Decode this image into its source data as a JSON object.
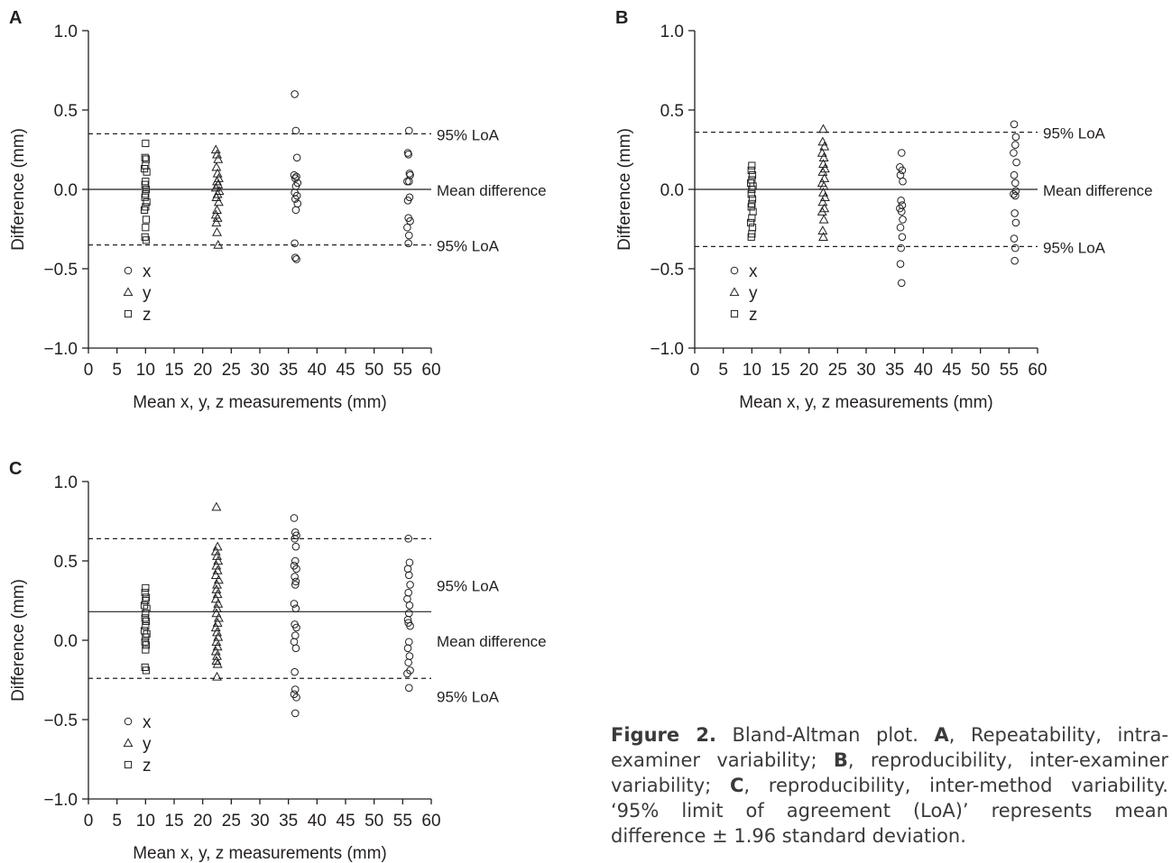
{
  "chart_data": [
    {
      "type": "scatter",
      "panel_label": "A",
      "xlabel": "Mean x, y, z measurements (mm)",
      "ylabel": "Difference (mm)",
      "xlim": [
        0,
        60
      ],
      "ylim": [
        -1.0,
        1.0
      ],
      "xticks": [
        0,
        5,
        10,
        15,
        20,
        25,
        30,
        35,
        40,
        45,
        50,
        55,
        60
      ],
      "yticks": [
        1.0,
        0.5,
        0.0,
        -0.5,
        -1.0
      ],
      "ytick_labels": [
        "1.0",
        "0.5",
        "0.0",
        "−0.5",
        "−1.0"
      ],
      "legend_position": "bottom-left",
      "lines": [
        {
          "label": "95% LoA",
          "y": 0.35,
          "style": "dashed"
        },
        {
          "label": "Mean difference",
          "y": 0.0,
          "style": "solid"
        },
        {
          "label": "95% LoA",
          "y": -0.35,
          "style": "dashed"
        }
      ],
      "series": [
        {
          "name": "x",
          "marker": "circle",
          "points": [
            [
              36.1,
              0.6
            ],
            [
              36.3,
              0.37
            ],
            [
              36.5,
              0.2
            ],
            [
              36.0,
              0.09
            ],
            [
              36.4,
              0.08
            ],
            [
              36.2,
              0.07
            ],
            [
              36.6,
              0.04
            ],
            [
              36.3,
              0.02
            ],
            [
              36.1,
              -0.02
            ],
            [
              36.5,
              -0.04
            ],
            [
              36.2,
              -0.06
            ],
            [
              36.6,
              -0.09
            ],
            [
              36.3,
              -0.13
            ],
            [
              36.1,
              -0.34
            ],
            [
              36.2,
              -0.43
            ],
            [
              36.4,
              -0.44
            ],
            [
              56.1,
              0.37
            ],
            [
              55.9,
              0.23
            ],
            [
              56.0,
              0.22
            ],
            [
              56.2,
              0.1
            ],
            [
              56.3,
              0.09
            ],
            [
              55.8,
              0.05
            ],
            [
              56.1,
              0.05
            ],
            [
              56.2,
              -0.05
            ],
            [
              55.9,
              -0.07
            ],
            [
              56.0,
              -0.18
            ],
            [
              56.3,
              -0.2
            ],
            [
              55.8,
              -0.24
            ],
            [
              56.1,
              -0.29
            ],
            [
              56.0,
              -0.34
            ]
          ]
        },
        {
          "name": "y",
          "marker": "triangle",
          "points": [
            [
              22.3,
              0.25
            ],
            [
              22.5,
              0.22
            ],
            [
              22.7,
              0.19
            ],
            [
              22.4,
              0.14
            ],
            [
              22.6,
              0.1
            ],
            [
              22.8,
              0.07
            ],
            [
              22.5,
              0.05
            ],
            [
              22.7,
              0.03
            ],
            [
              22.3,
              0.01
            ],
            [
              22.9,
              -0.01
            ],
            [
              22.6,
              -0.03
            ],
            [
              22.4,
              -0.05
            ],
            [
              22.8,
              -0.08
            ],
            [
              22.5,
              -0.13
            ],
            [
              22.3,
              -0.16
            ],
            [
              22.6,
              -0.18
            ],
            [
              22.4,
              -0.21
            ],
            [
              22.5,
              -0.27
            ],
            [
              22.7,
              -0.35
            ]
          ]
        },
        {
          "name": "z",
          "marker": "square",
          "points": [
            [
              10.0,
              0.29
            ],
            [
              9.9,
              0.2
            ],
            [
              10.1,
              0.19
            ],
            [
              10.0,
              0.15
            ],
            [
              9.8,
              0.13
            ],
            [
              10.2,
              0.11
            ],
            [
              10.0,
              0.05
            ],
            [
              9.9,
              0.03
            ],
            [
              10.1,
              0.0
            ],
            [
              10.0,
              -0.03
            ],
            [
              9.9,
              -0.05
            ],
            [
              10.2,
              -0.08
            ],
            [
              10.0,
              -0.11
            ],
            [
              9.8,
              -0.13
            ],
            [
              10.1,
              -0.19
            ],
            [
              10.0,
              -0.24
            ],
            [
              9.9,
              -0.3
            ],
            [
              10.1,
              -0.32
            ]
          ]
        }
      ]
    },
    {
      "type": "scatter",
      "panel_label": "B",
      "xlabel": "Mean x, y, z measurements (mm)",
      "ylabel": "Difference (mm)",
      "xlim": [
        0,
        60
      ],
      "ylim": [
        -1.0,
        1.0
      ],
      "xticks": [
        0,
        5,
        10,
        15,
        20,
        25,
        30,
        35,
        40,
        45,
        50,
        55,
        60
      ],
      "yticks": [
        1.0,
        0.5,
        0.0,
        -0.5,
        -1.0
      ],
      "ytick_labels": [
        "1.0",
        "0.5",
        "0.0",
        "−0.5",
        "−1.0"
      ],
      "legend_position": "bottom-left",
      "lines": [
        {
          "label": "95% LoA",
          "y": 0.36,
          "style": "dashed"
        },
        {
          "label": "Mean difference",
          "y": 0.0,
          "style": "solid"
        },
        {
          "label": "95% LoA",
          "y": -0.36,
          "style": "dashed"
        }
      ],
      "series": [
        {
          "name": "x",
          "marker": "circle",
          "points": [
            [
              36.2,
              0.23
            ],
            [
              35.9,
              0.14
            ],
            [
              36.3,
              0.12
            ],
            [
              36.0,
              0.09
            ],
            [
              36.4,
              0.05
            ],
            [
              36.1,
              -0.07
            ],
            [
              36.3,
              -0.1
            ],
            [
              35.9,
              -0.12
            ],
            [
              36.2,
              -0.14
            ],
            [
              36.4,
              -0.19
            ],
            [
              36.0,
              -0.24
            ],
            [
              36.3,
              -0.3
            ],
            [
              36.1,
              -0.37
            ],
            [
              36.0,
              -0.47
            ],
            [
              36.2,
              -0.59
            ],
            [
              55.9,
              0.41
            ],
            [
              56.2,
              0.33
            ],
            [
              56.1,
              0.28
            ],
            [
              55.8,
              0.23
            ],
            [
              56.3,
              0.17
            ],
            [
              55.9,
              0.09
            ],
            [
              56.1,
              0.04
            ],
            [
              56.2,
              -0.01
            ],
            [
              55.8,
              -0.03
            ],
            [
              56.1,
              -0.04
            ],
            [
              56.0,
              -0.15
            ],
            [
              56.2,
              -0.21
            ],
            [
              55.9,
              -0.31
            ],
            [
              56.1,
              -0.37
            ],
            [
              56.0,
              -0.45
            ]
          ]
        },
        {
          "name": "y",
          "marker": "triangle",
          "points": [
            [
              22.5,
              0.38
            ],
            [
              22.4,
              0.3
            ],
            [
              22.7,
              0.27
            ],
            [
              22.3,
              0.23
            ],
            [
              22.6,
              0.2
            ],
            [
              22.5,
              0.16
            ],
            [
              22.8,
              0.13
            ],
            [
              22.4,
              0.11
            ],
            [
              22.7,
              0.07
            ],
            [
              22.3,
              0.04
            ],
            [
              22.6,
              0.02
            ],
            [
              22.5,
              -0.02
            ],
            [
              22.8,
              -0.05
            ],
            [
              22.4,
              -0.08
            ],
            [
              22.7,
              -0.12
            ],
            [
              22.3,
              -0.14
            ],
            [
              22.6,
              -0.19
            ],
            [
              22.4,
              -0.26
            ],
            [
              22.5,
              -0.3
            ]
          ]
        },
        {
          "name": "z",
          "marker": "square",
          "points": [
            [
              10.0,
              0.15
            ],
            [
              9.9,
              0.12
            ],
            [
              10.1,
              0.09
            ],
            [
              10.0,
              0.06
            ],
            [
              9.8,
              0.04
            ],
            [
              10.2,
              0.02
            ],
            [
              10.0,
              0.0
            ],
            [
              9.9,
              -0.03
            ],
            [
              10.1,
              -0.06
            ],
            [
              10.0,
              -0.09
            ],
            [
              9.9,
              -0.11
            ],
            [
              10.2,
              -0.14
            ],
            [
              10.0,
              -0.18
            ],
            [
              9.8,
              -0.21
            ],
            [
              10.1,
              -0.24
            ],
            [
              10.0,
              -0.28
            ],
            [
              9.9,
              -0.3
            ]
          ]
        }
      ]
    },
    {
      "type": "scatter",
      "panel_label": "C",
      "xlabel": "Mean x, y, z measurements (mm)",
      "ylabel": "Difference (mm)",
      "xlim": [
        0,
        60
      ],
      "ylim": [
        -1.0,
        1.0
      ],
      "xticks": [
        0,
        5,
        10,
        15,
        20,
        25,
        30,
        35,
        40,
        45,
        50,
        55,
        60
      ],
      "yticks": [
        1.0,
        0.5,
        0.0,
        -0.5,
        -1.0
      ],
      "ytick_labels": [
        "1.0",
        "0.5",
        "0.0",
        "−0.5",
        "−1.0"
      ],
      "legend_position": "bottom-left",
      "lines": [
        {
          "label": "95% LoA",
          "y": 0.64,
          "style": "dashed"
        },
        {
          "label": "Mean difference",
          "y": 0.18,
          "style": "solid"
        },
        {
          "label": "95% LoA",
          "y": -0.24,
          "style": "dashed"
        }
      ],
      "series": [
        {
          "name": "x",
          "marker": "circle",
          "points": [
            [
              36.0,
              0.77
            ],
            [
              36.2,
              0.68
            ],
            [
              36.4,
              0.66
            ],
            [
              36.1,
              0.64
            ],
            [
              36.3,
              0.59
            ],
            [
              36.2,
              0.5
            ],
            [
              36.0,
              0.47
            ],
            [
              36.4,
              0.45
            ],
            [
              36.1,
              0.4
            ],
            [
              36.3,
              0.37
            ],
            [
              36.2,
              0.35
            ],
            [
              36.0,
              0.23
            ],
            [
              36.3,
              0.2
            ],
            [
              36.1,
              0.1
            ],
            [
              36.4,
              0.08
            ],
            [
              36.2,
              0.03
            ],
            [
              36.0,
              -0.01
            ],
            [
              36.3,
              -0.05
            ],
            [
              36.1,
              -0.2
            ],
            [
              36.2,
              -0.31
            ],
            [
              36.0,
              -0.34
            ],
            [
              36.4,
              -0.36
            ],
            [
              36.2,
              -0.46
            ],
            [
              56.0,
              0.64
            ],
            [
              56.2,
              0.49
            ],
            [
              55.9,
              0.45
            ],
            [
              56.1,
              0.41
            ],
            [
              56.3,
              0.35
            ],
            [
              56.0,
              0.3
            ],
            [
              55.8,
              0.26
            ],
            [
              56.2,
              0.22
            ],
            [
              56.1,
              0.17
            ],
            [
              55.9,
              0.13
            ],
            [
              56.0,
              0.11
            ],
            [
              56.3,
              0.09
            ],
            [
              56.1,
              -0.01
            ],
            [
              55.9,
              -0.05
            ],
            [
              56.2,
              -0.1
            ],
            [
              56.0,
              -0.14
            ],
            [
              56.3,
              -0.19
            ],
            [
              55.8,
              -0.21
            ],
            [
              56.1,
              -0.3
            ]
          ]
        },
        {
          "name": "y",
          "marker": "triangle",
          "points": [
            [
              22.4,
              0.84
            ],
            [
              22.6,
              0.59
            ],
            [
              22.3,
              0.56
            ],
            [
              22.5,
              0.53
            ],
            [
              22.7,
              0.5
            ],
            [
              22.4,
              0.47
            ],
            [
              22.6,
              0.44
            ],
            [
              22.3,
              0.41
            ],
            [
              22.8,
              0.38
            ],
            [
              22.5,
              0.35
            ],
            [
              22.4,
              0.32
            ],
            [
              22.6,
              0.29
            ],
            [
              22.3,
              0.26
            ],
            [
              22.7,
              0.23
            ],
            [
              22.5,
              0.2
            ],
            [
              22.4,
              0.17
            ],
            [
              22.8,
              0.14
            ],
            [
              22.6,
              0.11
            ],
            [
              22.3,
              0.08
            ],
            [
              22.5,
              0.05
            ],
            [
              22.7,
              0.02
            ],
            [
              22.4,
              -0.01
            ],
            [
              22.6,
              -0.04
            ],
            [
              22.3,
              -0.07
            ],
            [
              22.5,
              -0.1
            ],
            [
              22.4,
              -0.13
            ],
            [
              22.6,
              -0.15
            ],
            [
              22.5,
              -0.23
            ]
          ]
        },
        {
          "name": "z",
          "marker": "square",
          "points": [
            [
              10.0,
              0.33
            ],
            [
              9.9,
              0.3
            ],
            [
              10.1,
              0.27
            ],
            [
              10.0,
              0.25
            ],
            [
              9.8,
              0.22
            ],
            [
              10.2,
              0.2
            ],
            [
              10.0,
              0.17
            ],
            [
              9.9,
              0.14
            ],
            [
              10.1,
              0.12
            ],
            [
              10.0,
              0.09
            ],
            [
              9.8,
              0.06
            ],
            [
              10.2,
              0.04
            ],
            [
              10.0,
              0.02
            ],
            [
              9.9,
              -0.01
            ],
            [
              10.1,
              -0.03
            ],
            [
              10.0,
              -0.06
            ],
            [
              9.9,
              -0.17
            ],
            [
              10.1,
              -0.19
            ]
          ]
        }
      ]
    }
  ],
  "caption": {
    "figure_label": "Figure 2.",
    "title": " Bland-Altman plot. ",
    "label_a": "A",
    "text_a": ", Repeatability, intra-examiner variability; ",
    "label_b": "B",
    "text_b": ", reproducibility, inter-examiner variability; ",
    "label_c": "C",
    "text_c": ", reproducibility, inter-method variability. ‘95% limit of agreement (LoA)’ represents mean difference ± 1.96 standard deviation."
  }
}
